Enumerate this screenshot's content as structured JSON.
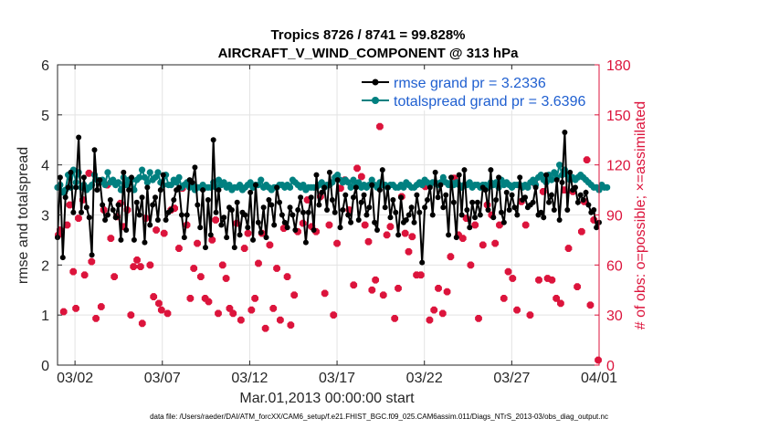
{
  "chart_data": {
    "type": "line",
    "title_line1": "Tropics 8726 / 8741 = 99.828%",
    "title_line2": "AIRCRAFT_V_WIND_COMPONENT @ 313 hPa",
    "xlabel": "Mar.01,2013 00:00:00 start",
    "ylabel_left": "rmse and totalspread",
    "ylabel_right": "# of obs: o=possible; ×=assimilated",
    "xlim": [
      0,
      31
    ],
    "ylim_left": [
      0,
      6
    ],
    "ylim_right": [
      0,
      180
    ],
    "x_ticks": [
      {
        "pos": 1,
        "label": "03/02"
      },
      {
        "pos": 6,
        "label": "03/07"
      },
      {
        "pos": 11,
        "label": "03/12"
      },
      {
        "pos": 16,
        "label": "03/17"
      },
      {
        "pos": 21,
        "label": "03/22"
      },
      {
        "pos": 26,
        "label": "03/27"
      },
      {
        "pos": 31,
        "label": "04/01"
      }
    ],
    "y_ticks_left": [
      {
        "value": 0,
        "label": "0"
      },
      {
        "value": 1,
        "label": "1"
      },
      {
        "value": 2,
        "label": "2"
      },
      {
        "value": 3,
        "label": "3"
      },
      {
        "value": 4,
        "label": "4"
      },
      {
        "value": 5,
        "label": "5"
      },
      {
        "value": 6,
        "label": "6"
      }
    ],
    "y_ticks_right": [
      {
        "value": 0,
        "label": "0"
      },
      {
        "value": 30,
        "label": "30"
      },
      {
        "value": 60,
        "label": "60"
      },
      {
        "value": 90,
        "label": "90"
      },
      {
        "value": 120,
        "label": "120"
      },
      {
        "value": 150,
        "label": "150"
      },
      {
        "value": 180,
        "label": "180"
      }
    ],
    "grid": true,
    "legend_position": "top-right",
    "series": [
      {
        "name": "rmse grand pr = 3.2336",
        "axis": "left",
        "color": "#000000",
        "values": [
          2.55,
          3.75,
          2.15,
          3.35,
          3.55,
          3.85,
          3.05,
          3.55,
          4.55,
          3.05,
          3.75,
          3.15,
          2.95,
          2.2,
          4.3,
          3.5,
          3.7,
          3.2,
          2.9,
          3.0,
          3.3,
          3.1,
          2.95,
          3.2,
          2.5,
          3.85,
          2.7,
          3.5,
          3.75,
          2.5,
          3.25,
          3.0,
          3.35,
          2.45,
          3.55,
          2.8,
          3.2,
          3.35,
          2.9,
          3.5,
          3.8,
          2.9,
          3.05,
          3.1,
          3.3,
          3.5,
          3.55,
          3.0,
          2.55,
          3.0,
          3.7,
          3.65,
          3.95,
          3.2,
          2.75,
          3.5,
          2.35,
          3.3,
          2.6,
          4.5,
          3.05,
          3.5,
          2.8,
          2.95,
          2.55,
          3.15,
          3.1,
          2.35,
          3.25,
          2.6,
          3.05,
          3.0,
          2.75,
          3.45,
          2.5,
          3.6,
          2.85,
          2.65,
          3.15,
          2.55,
          3.3,
          3.2,
          2.8,
          3.55,
          3.25,
          3.0,
          2.85,
          2.75,
          3.15,
          3.0,
          2.7,
          3.1,
          3.35,
          3.05,
          2.45,
          3.05,
          3.35,
          2.7,
          3.8,
          3.2,
          3.45,
          3.55,
          3.1,
          3.85,
          3.3,
          3.05,
          3.7,
          2.75,
          3.1,
          3.4,
          3.0,
          2.85,
          3.35,
          3.55,
          2.9,
          3.25,
          3.4,
          3.0,
          3.15,
          3.6,
          2.85,
          2.7,
          3.5,
          3.9,
          3.15,
          3.55,
          2.95,
          3.3,
          3.05,
          2.6,
          3.35,
          2.85,
          2.9,
          3.0,
          3.15,
          2.85,
          3.4,
          3.05,
          2.05,
          3.15,
          3.3,
          3.55,
          3.0,
          3.85,
          3.35,
          3.6,
          3.15,
          3.4,
          2.6,
          3.75,
          3.25,
          2.55,
          3.8,
          3.0,
          3.9,
          3.1,
          2.75,
          3.25,
          2.95,
          3.25,
          3.0,
          3.55,
          3.5,
          3.1,
          3.9,
          2.95,
          3.3,
          3.75,
          3.05,
          2.85,
          3.45,
          3.1,
          3.4,
          3.15,
          3.0,
          3.75,
          3.3,
          3.35,
          3.15,
          3.2,
          3.25,
          3.55,
          3.0,
          3.05,
          2.95,
          3.8,
          3.25,
          3.4,
          3.1,
          3.7,
          2.9,
          3.65,
          4.65,
          3.1,
          3.85,
          3.5,
          3.55,
          3.25,
          3.4,
          3.3,
          3.45,
          3.2,
          3.05,
          3.1,
          2.75,
          2.85
        ]
      },
      {
        "name": "totalspread grand pr = 3.6396",
        "axis": "left",
        "color": "#008080",
        "values": [
          3.55,
          3.6,
          3.45,
          3.5,
          3.8,
          3.55,
          3.9,
          3.65,
          3.85,
          3.55,
          3.6,
          3.5,
          3.55,
          3.6,
          3.8,
          3.7,
          3.65,
          3.7,
          3.6,
          3.85,
          3.65,
          3.7,
          3.6,
          3.65,
          3.5,
          3.75,
          3.6,
          3.7,
          3.7,
          3.5,
          3.7,
          3.75,
          3.9,
          3.75,
          3.65,
          3.85,
          3.7,
          3.75,
          3.85,
          3.65,
          3.6,
          3.8,
          3.6,
          3.6,
          3.7,
          3.65,
          3.75,
          3.55,
          3.6,
          3.65,
          3.55,
          3.6,
          3.5,
          3.55,
          3.55,
          3.6,
          3.55,
          3.55,
          3.55,
          3.65,
          3.55,
          3.7,
          3.6,
          3.65,
          3.55,
          3.6,
          3.5,
          3.55,
          3.55,
          3.6,
          3.5,
          3.55,
          3.6,
          3.65,
          3.55,
          3.6,
          3.6,
          3.7,
          3.55,
          3.6,
          3.55,
          3.5,
          3.55,
          3.55,
          3.6,
          3.6,
          3.55,
          3.6,
          3.55,
          3.7,
          3.65,
          3.6,
          3.55,
          3.6,
          3.5,
          3.55,
          3.55,
          3.55,
          3.55,
          3.6,
          3.65,
          3.55,
          3.6,
          3.6,
          3.65,
          3.75,
          3.8,
          3.7,
          3.65,
          3.7,
          3.65,
          3.55,
          3.7,
          3.6,
          3.65,
          3.55,
          3.6,
          3.55,
          3.6,
          3.7,
          3.6,
          3.55,
          3.65,
          3.6,
          3.6,
          3.55,
          3.6,
          3.6,
          3.55,
          3.55,
          3.6,
          3.55,
          3.65,
          3.6,
          3.55,
          3.55,
          3.6,
          3.65,
          3.6,
          3.7,
          3.65,
          3.6,
          3.65,
          3.65,
          3.6,
          3.65,
          3.75,
          3.65,
          3.6,
          3.65,
          3.6,
          3.65,
          3.6,
          3.55,
          3.6,
          3.6,
          3.65,
          3.55,
          3.6,
          3.6,
          3.55,
          3.6,
          3.6,
          3.55,
          3.65,
          3.6,
          3.65,
          3.55,
          3.7,
          3.6,
          3.65,
          3.6,
          3.55,
          3.6,
          3.6,
          3.6,
          3.55,
          3.6,
          3.55,
          3.65,
          3.7,
          3.6,
          3.75,
          3.8,
          3.7,
          3.65,
          3.8,
          3.7,
          3.85,
          3.75,
          4.0,
          3.8,
          3.9,
          3.8,
          3.7,
          3.75,
          3.7,
          3.75,
          3.8,
          3.75,
          3.7,
          3.65,
          3.6,
          3.55,
          3.55,
          3.5,
          3.6,
          3.55,
          3.55
        ]
      },
      {
        "name": "assimilated obs count",
        "axis": "right",
        "color": "#dc143c",
        "points": [
          [
            0.05,
            78
          ],
          [
            0.15,
            81
          ],
          [
            0.35,
            32
          ],
          [
            0.55,
            84
          ],
          [
            0.7,
            96
          ],
          [
            0.9,
            56
          ],
          [
            1.05,
            34
          ],
          [
            1.2,
            88
          ],
          [
            1.45,
            99
          ],
          [
            1.55,
            54
          ],
          [
            1.8,
            115
          ],
          [
            1.95,
            62
          ],
          [
            2.2,
            28
          ],
          [
            2.5,
            35
          ],
          [
            2.65,
            93
          ],
          [
            2.85,
            108
          ],
          [
            3.05,
            76
          ],
          [
            3.25,
            53
          ],
          [
            3.4,
            89
          ],
          [
            3.6,
            97
          ],
          [
            3.8,
            83
          ],
          [
            4.0,
            93
          ],
          [
            4.2,
            30
          ],
          [
            4.35,
            59
          ],
          [
            4.55,
            63
          ],
          [
            4.75,
            59
          ],
          [
            4.85,
            25
          ],
          [
            5.05,
            88
          ],
          [
            5.3,
            60
          ],
          [
            5.5,
            41
          ],
          [
            5.65,
            81
          ],
          [
            5.8,
            37
          ],
          [
            5.95,
            33
          ],
          [
            6.1,
            79
          ],
          [
            6.3,
            31
          ],
          [
            6.5,
            93
          ],
          [
            6.7,
            94
          ],
          [
            6.95,
            70
          ],
          [
            7.15,
            106
          ],
          [
            7.4,
            84
          ],
          [
            7.6,
            40
          ],
          [
            7.8,
            58
          ],
          [
            8.0,
            73
          ],
          [
            8.2,
            53
          ],
          [
            8.45,
            40
          ],
          [
            8.65,
            38
          ],
          [
            8.85,
            75
          ],
          [
            9.05,
            87
          ],
          [
            9.2,
            31
          ],
          [
            9.45,
            60
          ],
          [
            9.65,
            52
          ],
          [
            9.85,
            34
          ],
          [
            10.05,
            31
          ],
          [
            10.25,
            85
          ],
          [
            10.5,
            27
          ],
          [
            10.7,
            70
          ],
          [
            10.9,
            79
          ],
          [
            11.1,
            33
          ],
          [
            11.3,
            40
          ],
          [
            11.5,
            61
          ],
          [
            11.7,
            79
          ],
          [
            11.9,
            22
          ],
          [
            12.15,
            72
          ],
          [
            12.35,
            34
          ],
          [
            12.55,
            58
          ],
          [
            12.75,
            27
          ],
          [
            12.95,
            82
          ],
          [
            13.15,
            53
          ],
          [
            13.35,
            24
          ],
          [
            13.55,
            42
          ],
          [
            13.75,
            80
          ],
          [
            14.05,
            85
          ],
          [
            14.3,
            99
          ],
          [
            14.55,
            83
          ],
          [
            14.8,
            80
          ],
          [
            15.05,
            101
          ],
          [
            15.3,
            43
          ],
          [
            15.55,
            84
          ],
          [
            15.8,
            30
          ],
          [
            16.0,
            73
          ],
          [
            16.2,
            106
          ],
          [
            16.45,
            111
          ],
          [
            16.7,
            93
          ],
          [
            16.95,
            48
          ],
          [
            17.15,
            118
          ],
          [
            17.4,
            113
          ],
          [
            17.6,
            84
          ],
          [
            17.8,
            74
          ],
          [
            18.0,
            45
          ],
          [
            18.2,
            51
          ],
          [
            18.45,
            143
          ],
          [
            18.65,
            42
          ],
          [
            18.85,
            78
          ],
          [
            19.05,
            83
          ],
          [
            19.3,
            28
          ],
          [
            19.5,
            46
          ],
          [
            19.7,
            101
          ],
          [
            19.9,
            79
          ],
          [
            20.1,
            68
          ],
          [
            20.3,
            77
          ],
          [
            20.55,
            54
          ],
          [
            20.8,
            54
          ],
          [
            21.05,
            107
          ],
          [
            21.3,
            27
          ],
          [
            21.55,
            33
          ],
          [
            21.8,
            46
          ],
          [
            22.05,
            31
          ],
          [
            22.3,
            44
          ],
          [
            22.5,
            65
          ],
          [
            22.7,
            112
          ],
          [
            22.95,
            78
          ],
          [
            23.2,
            76
          ],
          [
            23.4,
            88
          ],
          [
            23.65,
            60
          ],
          [
            23.9,
            84
          ],
          [
            24.1,
            28
          ],
          [
            24.35,
            72
          ],
          [
            24.6,
            96
          ],
          [
            24.85,
            90
          ],
          [
            25.05,
            73
          ],
          [
            25.3,
            84
          ],
          [
            25.55,
            40
          ],
          [
            25.8,
            56
          ],
          [
            26.05,
            52
          ],
          [
            26.3,
            33
          ],
          [
            26.55,
            98
          ],
          [
            26.8,
            84
          ],
          [
            27.05,
            30
          ],
          [
            27.3,
            109
          ],
          [
            27.55,
            51
          ],
          [
            27.8,
            104
          ],
          [
            28.05,
            52
          ],
          [
            28.3,
            51
          ],
          [
            28.55,
            40
          ],
          [
            28.8,
            37
          ],
          [
            29.0,
            105
          ],
          [
            29.25,
            70
          ],
          [
            29.5,
            104
          ],
          [
            29.75,
            47
          ],
          [
            30.0,
            80
          ],
          [
            30.15,
            98
          ],
          [
            30.3,
            123
          ],
          [
            30.5,
            36
          ],
          [
            30.7,
            87
          ],
          [
            30.95,
            3
          ]
        ]
      }
    ],
    "legend": [
      {
        "label": "rmse grand pr = 3.2336",
        "color": "#000000"
      },
      {
        "label": "totalspread grand pr = 3.6396",
        "color": "#008080"
      }
    ],
    "footer": "data file: /Users/raeder/DAI/ATM_forcXX/CAM6_setup/f.e21.FHIST_BGC.f09_025.CAM6assim.011/Diags_NTrS_2013-03/obs_diag_output.nc"
  }
}
